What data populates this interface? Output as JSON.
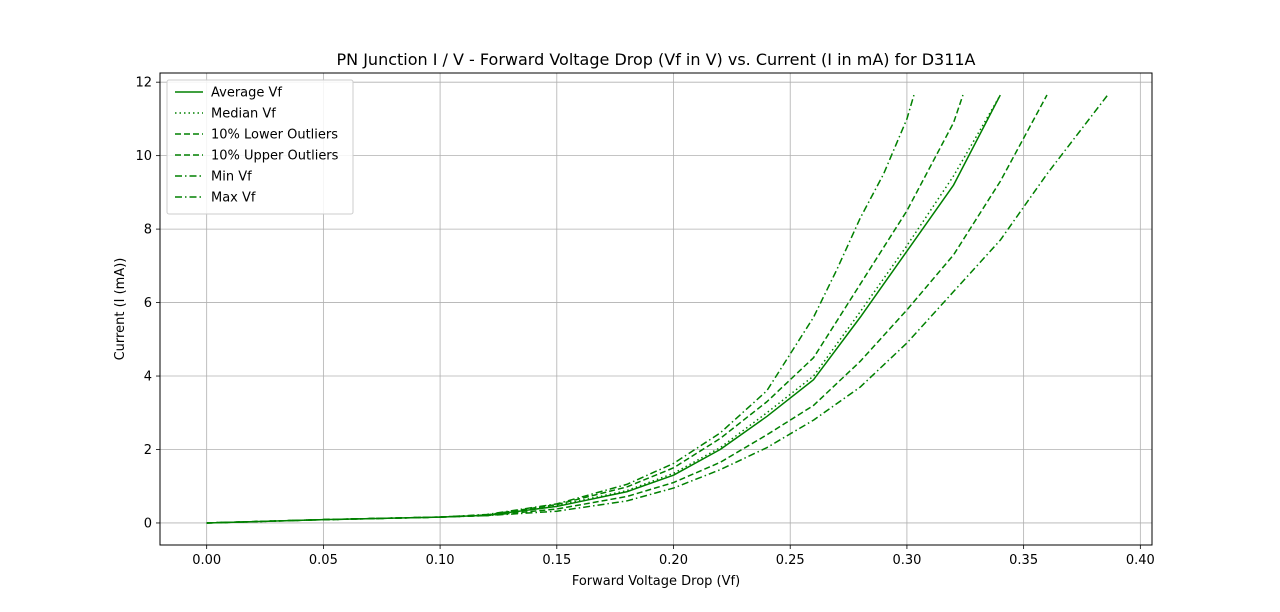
{
  "chart_data": {
    "type": "line",
    "title": "PN Junction I / V - Forward Voltage Drop (Vf in V) vs. Current (I in mA) for D311A",
    "xlabel": "Forward Voltage Drop (Vf)",
    "ylabel": "Current (I (mA))",
    "xlim": [
      -0.02,
      0.405
    ],
    "ylim": [
      -0.6,
      12.25
    ],
    "xticks": [
      0.0,
      0.05,
      0.1,
      0.15,
      0.2,
      0.25,
      0.3,
      0.35,
      0.4
    ],
    "xtick_labels": [
      "0.00",
      "0.05",
      "0.10",
      "0.15",
      "0.20",
      "0.25",
      "0.30",
      "0.35",
      "0.40"
    ],
    "yticks": [
      0,
      2,
      4,
      6,
      8,
      10,
      12
    ],
    "ytick_labels": [
      "0",
      "2",
      "4",
      "6",
      "8",
      "10",
      "12"
    ],
    "grid": true,
    "legend_position": "top-left",
    "color": "#008000",
    "series": [
      {
        "name": "Average Vf",
        "style": "solid",
        "x": [
          0.0,
          0.05,
          0.1,
          0.12,
          0.15,
          0.18,
          0.2,
          0.22,
          0.24,
          0.26,
          0.28,
          0.3,
          0.32,
          0.34
        ],
        "y": [
          0.0,
          0.09,
          0.16,
          0.21,
          0.45,
          0.85,
          1.3,
          2.0,
          2.9,
          3.9,
          5.6,
          7.4,
          9.2,
          11.65
        ]
      },
      {
        "name": "Median Vf",
        "style": "dotted",
        "x": [
          0.0,
          0.05,
          0.1,
          0.12,
          0.15,
          0.18,
          0.2,
          0.22,
          0.24,
          0.26,
          0.28,
          0.3,
          0.32,
          0.34
        ],
        "y": [
          0.0,
          0.09,
          0.16,
          0.21,
          0.47,
          0.88,
          1.35,
          2.05,
          3.0,
          4.0,
          5.75,
          7.55,
          9.45,
          11.65
        ]
      },
      {
        "name": "10% Lower Outliers",
        "style": "dashed",
        "x": [
          0.0,
          0.05,
          0.1,
          0.12,
          0.15,
          0.18,
          0.2,
          0.22,
          0.24,
          0.26,
          0.28,
          0.3,
          0.32,
          0.34,
          0.36
        ],
        "y": [
          0.0,
          0.09,
          0.16,
          0.2,
          0.38,
          0.72,
          1.1,
          1.65,
          2.4,
          3.2,
          4.4,
          5.8,
          7.3,
          9.3,
          11.65
        ]
      },
      {
        "name": "10% Upper Outliers",
        "style": "dashed",
        "x": [
          0.0,
          0.05,
          0.1,
          0.12,
          0.15,
          0.18,
          0.2,
          0.22,
          0.24,
          0.26,
          0.28,
          0.3,
          0.31,
          0.32,
          0.324
        ],
        "y": [
          0.0,
          0.09,
          0.16,
          0.22,
          0.5,
          0.98,
          1.5,
          2.3,
          3.3,
          4.5,
          6.5,
          8.5,
          9.7,
          10.9,
          11.65
        ]
      },
      {
        "name": "Min Vf",
        "style": "dashdot",
        "x": [
          0.0,
          0.05,
          0.1,
          0.12,
          0.15,
          0.18,
          0.2,
          0.22,
          0.24,
          0.26,
          0.28,
          0.3,
          0.32,
          0.34,
          0.36,
          0.386
        ],
        "y": [
          0.0,
          0.09,
          0.16,
          0.2,
          0.32,
          0.6,
          0.95,
          1.45,
          2.05,
          2.8,
          3.7,
          4.9,
          6.3,
          7.7,
          9.5,
          11.65
        ]
      },
      {
        "name": "Max Vf",
        "style": "dashdot",
        "x": [
          0.0,
          0.05,
          0.1,
          0.12,
          0.15,
          0.18,
          0.2,
          0.22,
          0.24,
          0.25,
          0.26,
          0.27,
          0.28,
          0.29,
          0.3,
          0.303
        ],
        "y": [
          0.0,
          0.09,
          0.16,
          0.23,
          0.52,
          1.05,
          1.62,
          2.45,
          3.6,
          4.6,
          5.6,
          6.9,
          8.3,
          9.5,
          11.0,
          11.65
        ]
      }
    ]
  }
}
